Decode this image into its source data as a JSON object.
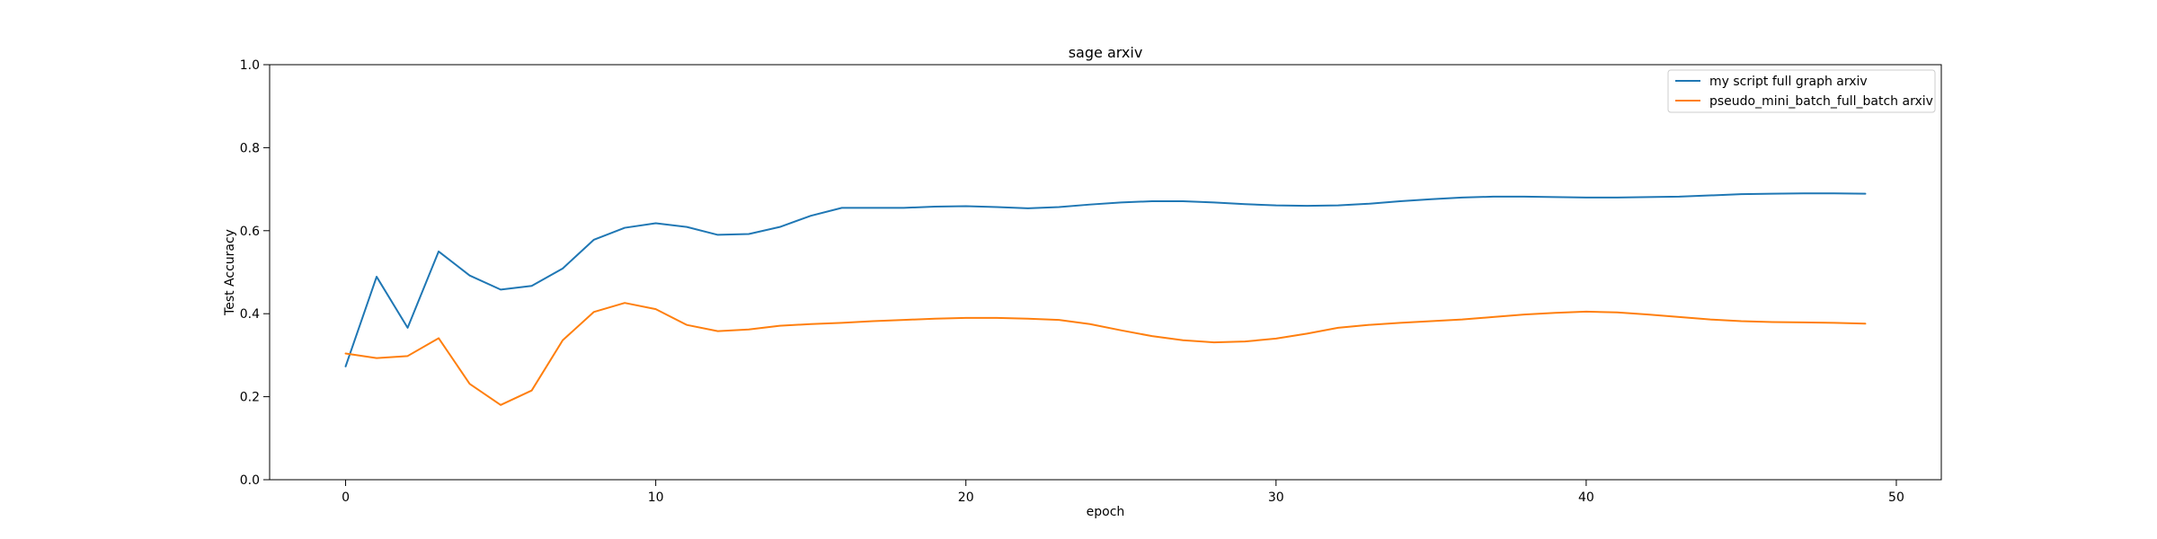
{
  "chart_data": {
    "type": "line",
    "title": "sage arxiv",
    "xlabel": "epoch",
    "ylabel": "Test Accuracy",
    "xlim": [
      -2.45,
      51.45
    ],
    "ylim": [
      0.0,
      1.0
    ],
    "xticks": [
      0,
      10,
      20,
      30,
      40,
      50
    ],
    "yticks": [
      0.0,
      0.2,
      0.4,
      0.6,
      0.8,
      1.0
    ],
    "x": [
      0,
      1,
      2,
      3,
      4,
      5,
      6,
      7,
      8,
      9,
      10,
      11,
      12,
      13,
      14,
      15,
      16,
      17,
      18,
      19,
      20,
      21,
      22,
      23,
      24,
      25,
      26,
      27,
      28,
      29,
      30,
      31,
      32,
      33,
      34,
      35,
      36,
      37,
      38,
      39,
      40,
      41,
      42,
      43,
      44,
      45,
      46,
      47,
      48,
      49
    ],
    "grid": false,
    "legend_position": "top-right",
    "series": [
      {
        "name": "my script full graph arxiv",
        "color": "#1f77b4",
        "values": [
          0.273,
          0.489,
          0.366,
          0.55,
          0.492,
          0.458,
          0.467,
          0.509,
          0.578,
          0.607,
          0.618,
          0.609,
          0.59,
          0.592,
          0.609,
          0.636,
          0.655,
          0.655,
          0.655,
          0.658,
          0.659,
          0.657,
          0.654,
          0.657,
          0.663,
          0.668,
          0.671,
          0.671,
          0.668,
          0.664,
          0.661,
          0.66,
          0.661,
          0.665,
          0.671,
          0.676,
          0.68,
          0.682,
          0.682,
          0.681,
          0.68,
          0.68,
          0.681,
          0.682,
          0.685,
          0.688,
          0.689,
          0.69,
          0.69,
          0.689
        ]
      },
      {
        "name": "pseudo_mini_batch_full_batch arxiv",
        "color": "#ff7f0e",
        "values": [
          0.304,
          0.293,
          0.298,
          0.341,
          0.231,
          0.18,
          0.215,
          0.336,
          0.404,
          0.426,
          0.411,
          0.373,
          0.358,
          0.362,
          0.371,
          0.375,
          0.378,
          0.382,
          0.385,
          0.388,
          0.39,
          0.39,
          0.388,
          0.385,
          0.375,
          0.36,
          0.346,
          0.336,
          0.331,
          0.333,
          0.34,
          0.352,
          0.366,
          0.373,
          0.378,
          0.382,
          0.386,
          0.392,
          0.398,
          0.402,
          0.405,
          0.403,
          0.398,
          0.392,
          0.386,
          0.382,
          0.38,
          0.379,
          0.378,
          0.376
        ]
      }
    ]
  }
}
